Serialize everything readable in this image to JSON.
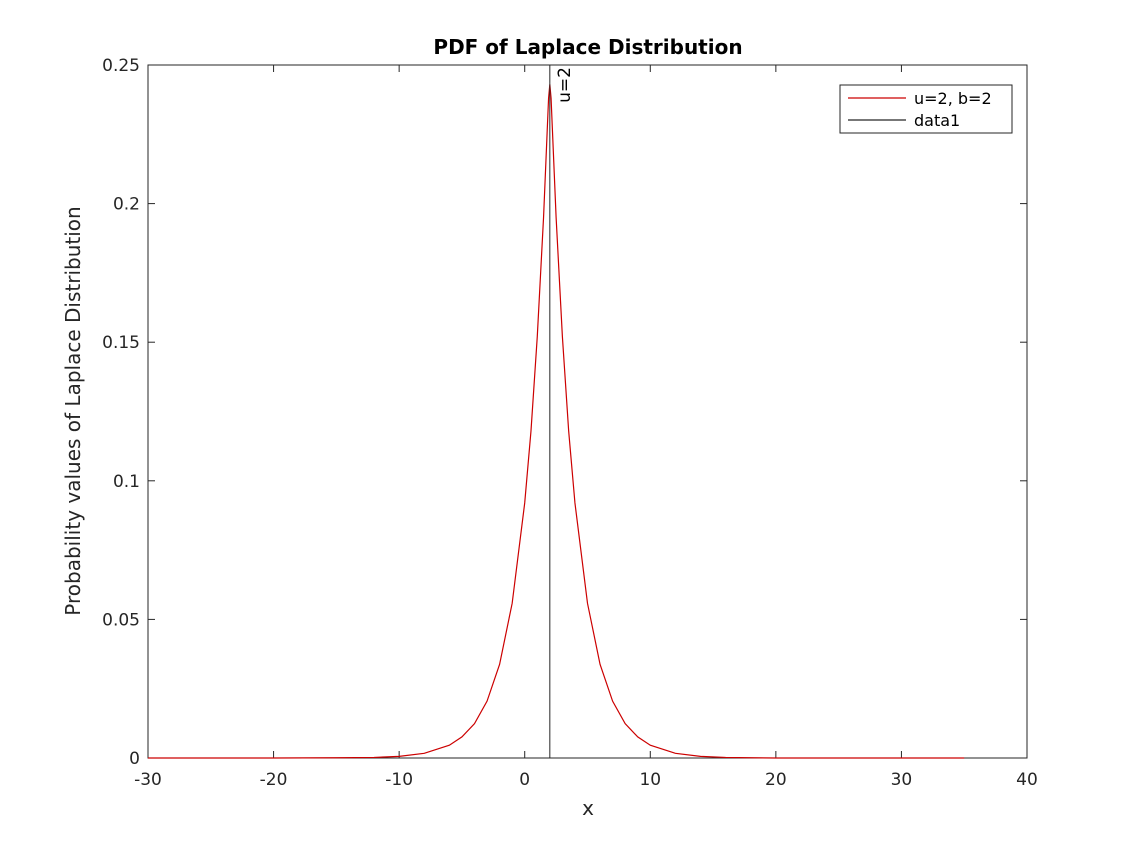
{
  "chart_data": {
    "type": "line",
    "title": "PDF of Laplace Distribution",
    "xlabel": "x",
    "ylabel": "Probability values of Laplace Distribution",
    "xlim": [
      -30,
      40
    ],
    "ylim": [
      0,
      0.25
    ],
    "xticks": [
      -30,
      -20,
      -10,
      0,
      10,
      20,
      30,
      40
    ],
    "xtick_labels": [
      "-30",
      "-20",
      "-10",
      "0",
      "10",
      "20",
      "30",
      "40"
    ],
    "yticks": [
      0,
      0.05,
      0.1,
      0.15,
      0.2,
      0.25
    ],
    "ytick_labels": [
      "0",
      "0.05",
      "0.1",
      "0.15",
      "0.2",
      "0.25"
    ],
    "grid": false,
    "legend_position": "top-right",
    "series": [
      {
        "name": "u=2, b=2",
        "color": "#cc0000",
        "kind": "curve",
        "x": [
          -30,
          -25,
          -20,
          -15,
          -12,
          -10,
          -8,
          -6,
          -5,
          -4,
          -3,
          -2,
          -1,
          0,
          0.5,
          1,
          1.5,
          1.9,
          2,
          2.1,
          2.5,
          3,
          3.5,
          4,
          5,
          6,
          7,
          8,
          9,
          10,
          12,
          14,
          16,
          20,
          25,
          30,
          35
        ],
        "y": [
          0,
          0.0,
          0.0,
          0.0001,
          0.0002,
          0.0006,
          0.0017,
          0.0046,
          0.0076,
          0.0124,
          0.0205,
          0.0338,
          0.0558,
          0.092,
          0.118,
          0.152,
          0.195,
          0.238,
          0.243,
          0.238,
          0.195,
          0.152,
          0.118,
          0.092,
          0.0558,
          0.0338,
          0.0205,
          0.0124,
          0.0076,
          0.0046,
          0.0017,
          0.0006,
          0.0002,
          0.0,
          0.0,
          0.0,
          0.0
        ]
      },
      {
        "name": "data1",
        "color": "#262626",
        "kind": "vline",
        "x": [
          2,
          2
        ],
        "y": [
          0,
          0.25
        ]
      }
    ],
    "annotations": [
      {
        "text": "u=2",
        "x": 2,
        "y": 0.243
      }
    ]
  }
}
